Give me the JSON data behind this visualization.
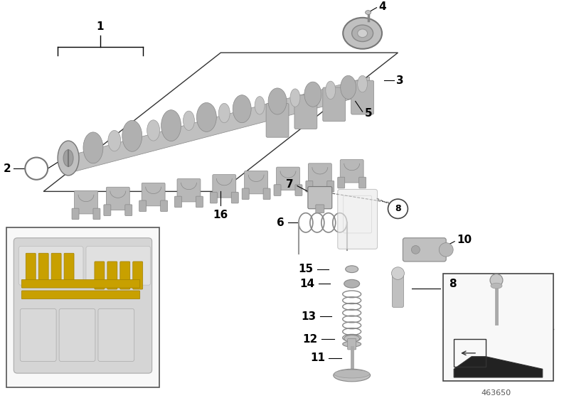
{
  "background_color": "#ffffff",
  "part_number": "463650",
  "line_color": "#000000",
  "text_color": "#000000",
  "gray_part": "#b0b0b0",
  "gray_dark": "#888888",
  "gray_light": "#d0d0d0",
  "gray_mid": "#a0a0a0",
  "yellow": "#c8a000",
  "label_fs": 9,
  "label_bold_fs": 11
}
